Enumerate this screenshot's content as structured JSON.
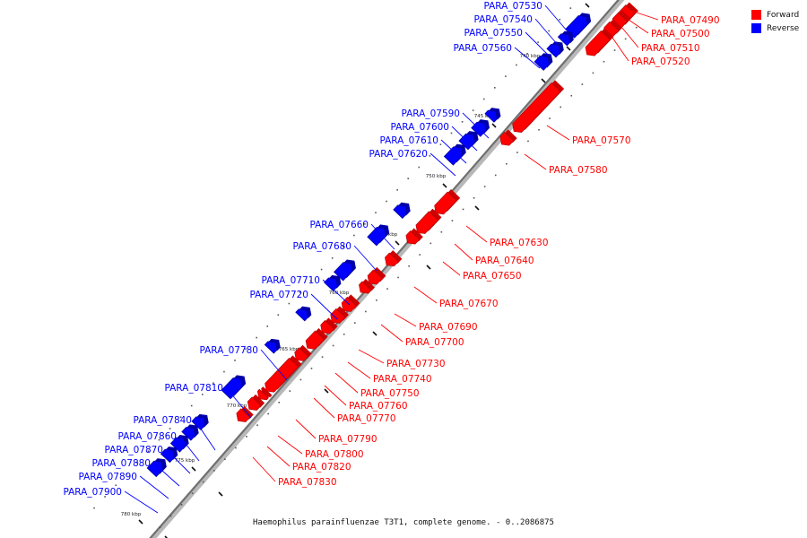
{
  "legend": {
    "forward": {
      "label": "Forward",
      "color": "#ff0000"
    },
    "reverse": {
      "label": "Reverse",
      "color": "#0000ff"
    }
  },
  "caption": "Haemophilus parainfluenzae T3T1, complete genome. - 0..2086875",
  "ticks": [
    "740 kbp",
    "745 kbp",
    "750 kbp",
    "755 kbp",
    "760 kbp",
    "765 kbp",
    "770 kbp",
    "775 kbp",
    "780 kbp"
  ],
  "genes": [
    {
      "id": "PARA_07490",
      "strand": "forward"
    },
    {
      "id": "PARA_07500",
      "strand": "forward"
    },
    {
      "id": "PARA_07510",
      "strand": "forward"
    },
    {
      "id": "PARA_07520",
      "strand": "forward"
    },
    {
      "id": "PARA_07530",
      "strand": "reverse"
    },
    {
      "id": "PARA_07540",
      "strand": "reverse"
    },
    {
      "id": "PARA_07550",
      "strand": "reverse"
    },
    {
      "id": "PARA_07560",
      "strand": "reverse"
    },
    {
      "id": "PARA_07570",
      "strand": "forward"
    },
    {
      "id": "PARA_07580",
      "strand": "forward"
    },
    {
      "id": "PARA_07590",
      "strand": "reverse"
    },
    {
      "id": "PARA_07600",
      "strand": "reverse"
    },
    {
      "id": "PARA_07610",
      "strand": "reverse"
    },
    {
      "id": "PARA_07620",
      "strand": "reverse"
    },
    {
      "id": "PARA_07630",
      "strand": "forward"
    },
    {
      "id": "PARA_07640",
      "strand": "forward"
    },
    {
      "id": "PARA_07650",
      "strand": "forward"
    },
    {
      "id": "PARA_07660",
      "strand": "reverse"
    },
    {
      "id": "PARA_07670",
      "strand": "forward"
    },
    {
      "id": "PARA_07680",
      "strand": "reverse"
    },
    {
      "id": "PARA_07690",
      "strand": "forward"
    },
    {
      "id": "PARA_07700",
      "strand": "forward"
    },
    {
      "id": "PARA_07710",
      "strand": "reverse"
    },
    {
      "id": "PARA_07720",
      "strand": "reverse"
    },
    {
      "id": "PARA_07730",
      "strand": "forward"
    },
    {
      "id": "PARA_07740",
      "strand": "forward"
    },
    {
      "id": "PARA_07750",
      "strand": "forward"
    },
    {
      "id": "PARA_07760",
      "strand": "forward"
    },
    {
      "id": "PARA_07770",
      "strand": "forward"
    },
    {
      "id": "PARA_07780",
      "strand": "reverse"
    },
    {
      "id": "PARA_07790",
      "strand": "forward"
    },
    {
      "id": "PARA_07800",
      "strand": "forward"
    },
    {
      "id": "PARA_07810",
      "strand": "reverse"
    },
    {
      "id": "PARA_07820",
      "strand": "forward"
    },
    {
      "id": "PARA_07830",
      "strand": "forward"
    },
    {
      "id": "PARA_07840",
      "strand": "reverse"
    },
    {
      "id": "PARA_07860",
      "strand": "reverse"
    },
    {
      "id": "PARA_07870",
      "strand": "reverse"
    },
    {
      "id": "PARA_07880",
      "strand": "reverse"
    },
    {
      "id": "PARA_07890",
      "strand": "reverse"
    },
    {
      "id": "PARA_07900",
      "strand": "reverse"
    }
  ]
}
